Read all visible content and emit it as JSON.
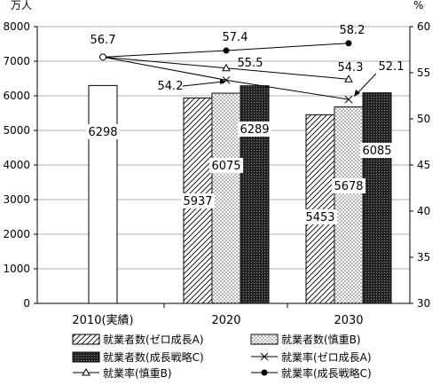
{
  "chart_data": {
    "type": "bar",
    "y_left_unit": "万人",
    "y_right_unit": "%",
    "categories": [
      "2010(実績)",
      "2020",
      "2030"
    ],
    "y_left_ticks": [
      "0",
      "1000",
      "2000",
      "3000",
      "4000",
      "5000",
      "6000",
      "7000",
      "8000"
    ],
    "y_right_ticks": [
      "30",
      "35",
      "40",
      "45",
      "50",
      "55",
      "60"
    ],
    "ylim_left": [
      0,
      8000
    ],
    "ylim_right": [
      30,
      60
    ],
    "grid": true,
    "legend_position": "bottom",
    "series": [
      {
        "name": "就業者数(ゼロ成長A)",
        "kind": "bar",
        "axis": "left",
        "pattern": "hatch",
        "values": [
          6298,
          5937,
          5453
        ],
        "labels": [
          "6298",
          "5937",
          "5453"
        ]
      },
      {
        "name": "就業者数(慎重B)",
        "kind": "bar",
        "axis": "left",
        "pattern": "dots",
        "values": [
          null,
          6075,
          5678
        ],
        "labels": [
          "",
          "6075",
          "5678"
        ]
      },
      {
        "name": "就業者数(成長戦略C)",
        "kind": "bar",
        "axis": "left",
        "pattern": "dark",
        "values": [
          null,
          6289,
          6085
        ],
        "labels": [
          "",
          "6289",
          "6085"
        ]
      },
      {
        "name": "就業率(ゼロ成長A)",
        "kind": "line",
        "axis": "right",
        "marker": "x",
        "values": [
          56.7,
          54.2,
          52.1
        ],
        "labels": [
          "",
          "54.2",
          "52.1"
        ]
      },
      {
        "name": "就業率(慎重B)",
        "kind": "line",
        "axis": "right",
        "marker": "triangle",
        "values": [
          56.7,
          55.5,
          54.3
        ],
        "labels": [
          "",
          "55.5",
          "54.3"
        ]
      },
      {
        "name": "就業率(成長戦略C)",
        "kind": "line",
        "axis": "right",
        "marker": "dot",
        "values": [
          56.7,
          57.4,
          58.2
        ],
        "labels": [
          "56.7",
          "57.4",
          "58.2"
        ]
      }
    ],
    "colors": {
      "hatch": "#000000",
      "dots": "#000000",
      "dark": "#1a1a1a",
      "line": "#000000",
      "grid": "#b0b0b0"
    }
  }
}
